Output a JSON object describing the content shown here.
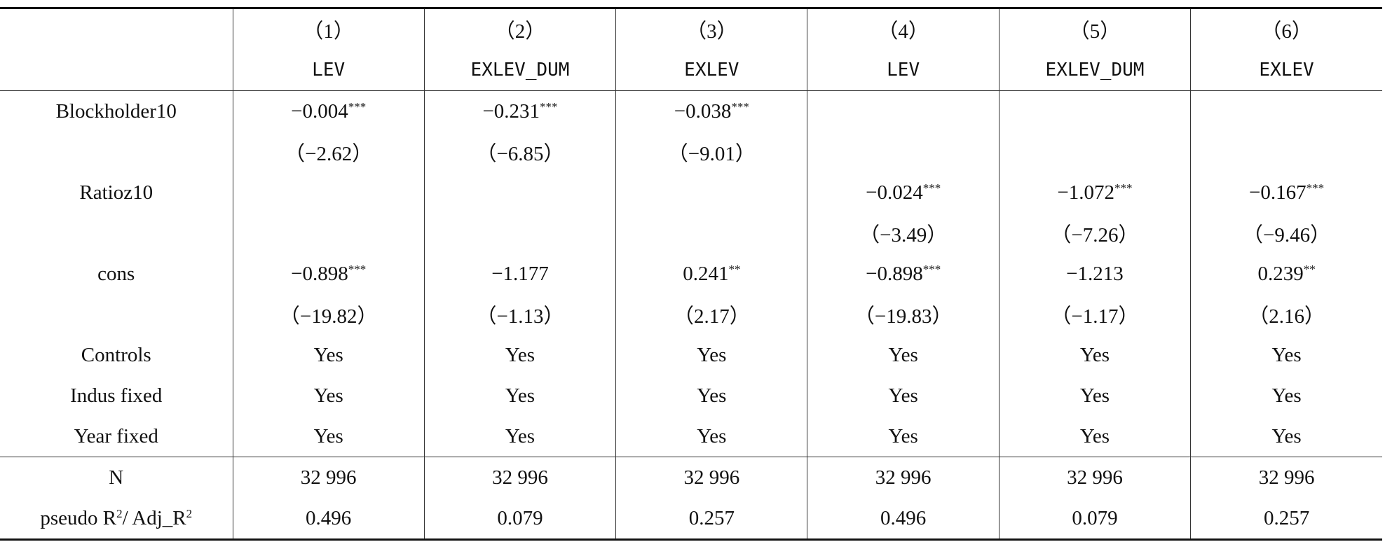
{
  "header": {
    "row1": [
      "（1）",
      "（2）",
      "（3）",
      "（4）",
      "（5）",
      "（6）"
    ],
    "row2": [
      "LEV",
      "EXLEV_DUM",
      "EXLEV",
      "LEV",
      "EXLEV_DUM",
      "EXLEV"
    ]
  },
  "rows": [
    {
      "label": "Blockholder10",
      "cells": [
        {
          "text": "−0.004",
          "sup": "***"
        },
        {
          "text": "−0.231",
          "sup": "***"
        },
        {
          "text": "−0.038",
          "sup": "***"
        },
        null,
        null,
        null
      ]
    },
    {
      "label": null,
      "cells": [
        "（−2.62）",
        "（−6.85）",
        "（−9.01）",
        null,
        null,
        null
      ]
    },
    {
      "label": "Ratioz10",
      "cells": [
        null,
        null,
        null,
        {
          "text": "−0.024",
          "sup": "***"
        },
        {
          "text": "−1.072",
          "sup": "***"
        },
        {
          "text": "−0.167",
          "sup": "***"
        }
      ]
    },
    {
      "label": null,
      "cells": [
        null,
        null,
        null,
        "（−3.49）",
        "（−7.26）",
        "（−9.46）"
      ]
    },
    {
      "label": "cons",
      "cells": [
        {
          "text": "−0.898",
          "sup": "***"
        },
        "−1.177",
        {
          "text": "0.241",
          "sup": "**"
        },
        {
          "text": "−0.898",
          "sup": "***"
        },
        "−1.213",
        {
          "text": "0.239",
          "sup": "**"
        }
      ]
    },
    {
      "label": null,
      "cells": [
        "（−19.82）",
        "（−1.13）",
        "（2.17）",
        "（−19.83）",
        "（−1.17）",
        "（2.16）"
      ]
    },
    {
      "label": "Controls",
      "cells": [
        "Yes",
        "Yes",
        "Yes",
        "Yes",
        "Yes",
        "Yes"
      ]
    },
    {
      "label": "Indus fixed",
      "cells": [
        "Yes",
        "Yes",
        "Yes",
        "Yes",
        "Yes",
        "Yes"
      ]
    },
    {
      "label": "Year fixed",
      "cells": [
        "Yes",
        "Yes",
        "Yes",
        "Yes",
        "Yes",
        "Yes"
      ]
    }
  ],
  "footer": [
    {
      "label": "N",
      "cells": [
        "32 996",
        "32 996",
        "32 996",
        "32 996",
        "32 996",
        "32 996"
      ]
    },
    {
      "label": [
        {
          "text": "pseudo R"
        },
        {
          "sup": "2"
        },
        {
          "text": "/ Adj_R"
        },
        {
          "sup": "2"
        }
      ],
      "cells": [
        "0.496",
        "0.079",
        "0.257",
        "0.496",
        "0.079",
        "0.257"
      ]
    }
  ]
}
